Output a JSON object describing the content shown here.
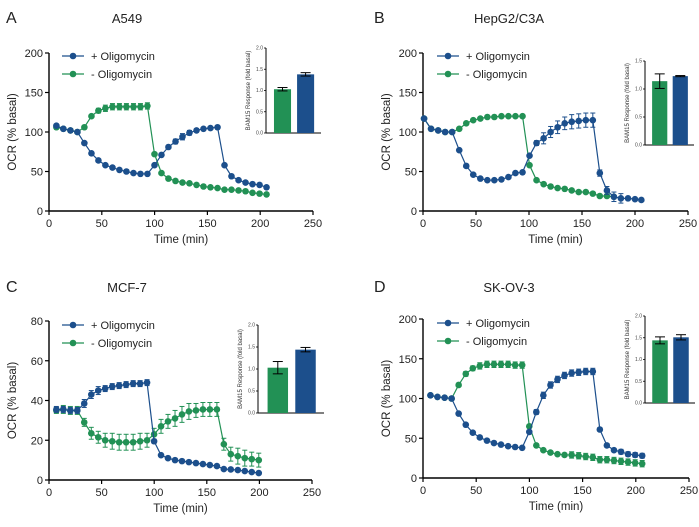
{
  "colors": {
    "plus": "#1c4f8c",
    "minus": "#229155",
    "axis": "#000000"
  },
  "chart_data": [
    {
      "type": "line",
      "panel": "A",
      "title": "A549",
      "xlabel": "Time (min)",
      "ylabel": "OCR (% basal)",
      "xlim": [
        0,
        250
      ],
      "ylim": [
        0,
        200
      ],
      "xticks": [
        "0",
        "50",
        "100",
        "150",
        "200",
        "250"
      ],
      "yticks": [
        "0",
        "50",
        "100",
        "150",
        "200"
      ],
      "legend": "top-left",
      "series": [
        {
          "name": "+ Oligomycin",
          "color": "#1c4f8c",
          "x": [
            7,
            13.6,
            20.3,
            26.9,
            33.5,
            40.2,
            46.8,
            53.4,
            60.1,
            66.7,
            73.3,
            80,
            86.6,
            93.2,
            99.9,
            106.5,
            113.1,
            119.8,
            126.4,
            133,
            139.7,
            146.3,
            152.9,
            159.6,
            166.2,
            172.8,
            179.5,
            186.1,
            192.7,
            199.4,
            206
          ],
          "y": [
            108,
            104,
            102,
            100,
            86,
            73,
            64,
            58,
            55,
            52,
            50,
            48,
            47,
            47,
            58,
            71,
            81,
            88,
            94,
            99,
            102,
            104,
            105,
            106,
            58,
            44,
            39,
            36,
            34,
            33,
            30
          ],
          "err": [
            2,
            2,
            1,
            1,
            1,
            1,
            1,
            1,
            1,
            1,
            1,
            1,
            1,
            1,
            1,
            1,
            2,
            3,
            4,
            3,
            2,
            1,
            1,
            1,
            1,
            1,
            1,
            1,
            1,
            1,
            1
          ]
        },
        {
          "name": "- Oligomycin",
          "color": "#229155",
          "x": [
            7,
            13.6,
            20.3,
            26.9,
            33.5,
            40.2,
            46.8,
            53.4,
            60.1,
            66.7,
            73.3,
            80,
            86.6,
            93.2,
            99.9,
            106.5,
            113.1,
            119.8,
            126.4,
            133,
            139.7,
            146.3,
            152.9,
            159.6,
            166.2,
            172.8,
            179.5,
            186.1,
            192.7,
            199.4,
            206
          ],
          "y": [
            106,
            104,
            102,
            100,
            106,
            120,
            127,
            130,
            132,
            132,
            132,
            132,
            132,
            133,
            72,
            48,
            41,
            38,
            36,
            35,
            33,
            31,
            30,
            29,
            27,
            27,
            26,
            25,
            23,
            22,
            21
          ],
          "err": [
            1,
            1,
            1,
            1,
            1,
            2,
            3,
            4,
            4,
            4,
            4,
            4,
            4,
            4,
            1,
            1,
            1,
            1,
            1,
            1,
            1,
            1,
            1,
            1,
            1,
            1,
            1,
            1,
            1,
            1,
            1
          ]
        }
      ],
      "inset": {
        "type": "bar",
        "ylabel": "BAM15 Response (fold basal)",
        "ylim": [
          0,
          2.0
        ],
        "yticks": [
          "0.0",
          "0.5",
          "1.0",
          "1.5",
          "2.0"
        ],
        "bars": [
          {
            "name": "- Oligomycin",
            "value": 1.03,
            "err": 0.04,
            "color": "#229155"
          },
          {
            "name": "+ Oligomycin",
            "value": 1.38,
            "err": 0.04,
            "color": "#1c4f8c"
          }
        ]
      }
    },
    {
      "type": "line",
      "panel": "B",
      "title": "HepG2/C3A",
      "xlabel": "Time (min)",
      "ylabel": "OCR (% basal)",
      "xlim": [
        0,
        250
      ],
      "ylim": [
        0,
        200
      ],
      "xticks": [
        "0",
        "50",
        "100",
        "150",
        "200",
        "250"
      ],
      "yticks": [
        "0",
        "50",
        "100",
        "150",
        "200"
      ],
      "legend": "top-left",
      "series": [
        {
          "name": "+ Oligomycin",
          "color": "#1c4f8c",
          "x": [
            1,
            7.6,
            14.3,
            20.9,
            27.5,
            34.2,
            40.8,
            47.4,
            54.1,
            60.7,
            67.3,
            74,
            80.6,
            87.2,
            93.9,
            100.5,
            107.1,
            113.8,
            120.4,
            127,
            133.7,
            140.3,
            146.9,
            153.6,
            160.2,
            166.8,
            173.5,
            180.1,
            186.7,
            193.4,
            200,
            206
          ],
          "y": [
            117,
            104,
            102,
            100,
            100,
            77,
            57,
            46,
            41,
            39,
            39,
            40,
            43,
            48,
            49,
            70,
            86,
            92,
            100,
            106,
            111,
            113,
            114,
            115,
            115,
            48,
            26,
            18,
            16,
            16,
            15,
            14
          ],
          "err": [
            1,
            1,
            1,
            1,
            1,
            1,
            1,
            1,
            1,
            1,
            1,
            1,
            1,
            1,
            1,
            1,
            3,
            7,
            7,
            8,
            8,
            9,
            9,
            9,
            9,
            4,
            5,
            6,
            6,
            1,
            1,
            1
          ]
        },
        {
          "name": "- Oligomycin",
          "color": "#229155",
          "x": [
            1,
            7.6,
            14.3,
            20.9,
            27.5,
            34.2,
            40.8,
            47.4,
            54.1,
            60.7,
            67.3,
            74,
            80.6,
            87.2,
            93.9,
            100.5,
            107.1,
            113.8,
            120.4,
            127,
            133.7,
            140.3,
            146.9,
            153.6,
            160.2,
            166.8,
            173.5,
            180.1
          ],
          "y": [
            117,
            104,
            102,
            100,
            100,
            104,
            111,
            115,
            117,
            119,
            119,
            120,
            120,
            120,
            120,
            58,
            39,
            34,
            31,
            29,
            28,
            26,
            24,
            24,
            22,
            19,
            19,
            18
          ],
          "err": [
            1,
            1,
            1,
            1,
            1,
            1,
            1,
            1,
            1,
            1,
            1,
            1,
            1,
            1,
            1,
            1,
            1,
            1,
            1,
            1,
            1,
            1,
            1,
            1,
            1,
            1,
            1,
            1
          ]
        }
      ],
      "inset": {
        "type": "bar",
        "ylabel": "BAM15 Response (fold basal)",
        "ylim": [
          0,
          1.5
        ],
        "yticks": [
          "0.0",
          "0.5",
          "1.0",
          "1.5"
        ],
        "bars": [
          {
            "name": "- Oligomycin",
            "value": 1.14,
            "err": 0.13,
            "color": "#229155"
          },
          {
            "name": "+ Oligomycin",
            "value": 1.23,
            "err": 0.01,
            "color": "#1c4f8c"
          }
        ]
      }
    },
    {
      "type": "line",
      "panel": "C",
      "title": "MCF-7",
      "xlabel": "Time (min)",
      "ylabel": "OCR (% basal)",
      "xlim": [
        0,
        250
      ],
      "ylim": [
        0,
        80
      ],
      "xticks": [
        "0",
        "50",
        "100",
        "150",
        "200",
        "250"
      ],
      "yticks": [
        "0",
        "20",
        "40",
        "60",
        "80"
      ],
      "legend": "top-left",
      "series": [
        {
          "name": "+ Oligomycin",
          "color": "#1c4f8c",
          "x": [
            7,
            13.6,
            20.3,
            26.9,
            33.5,
            40.2,
            46.8,
            53.4,
            60.1,
            66.7,
            73.3,
            80,
            86.6,
            93.2,
            99.9,
            106.5,
            113.1,
            119.8,
            126.4,
            133,
            139.7,
            146.3,
            152.9,
            159.6,
            166.2,
            172.8,
            179.5,
            186.1,
            192.7,
            199.4
          ],
          "y": [
            35.5,
            35.5,
            35,
            35,
            38.5,
            43,
            45,
            46,
            47,
            47.5,
            48,
            48.5,
            48.5,
            49,
            19.5,
            12.5,
            11,
            10,
            9.5,
            9,
            8.5,
            8,
            7.5,
            7,
            5.5,
            5.3,
            5,
            4.5,
            4,
            3.5
          ],
          "err": [
            1.5,
            1.5,
            1.5,
            1.5,
            2,
            2,
            2,
            1.5,
            1.5,
            1.5,
            1.5,
            1.5,
            1.5,
            1.5,
            1,
            0.8,
            0.8,
            0.8,
            0.6,
            0.6,
            0.6,
            0.6,
            0.6,
            0.6,
            0.6,
            0.6,
            0.6,
            0.6,
            0.6,
            0.6
          ]
        },
        {
          "name": "- Oligomycin",
          "color": "#229155",
          "x": [
            7,
            13.6,
            20.3,
            26.9,
            33.5,
            40.2,
            46.8,
            53.4,
            60.1,
            66.7,
            73.3,
            80,
            86.6,
            93.2,
            99.9,
            106.5,
            113.1,
            119.8,
            126.4,
            133,
            139.7,
            146.3,
            152.9,
            159.6,
            166.2,
            172.8,
            179.5,
            186.1,
            192.7,
            199.4
          ],
          "y": [
            35,
            35.5,
            35,
            35,
            29,
            23.5,
            21.5,
            20,
            19.5,
            19,
            19,
            19,
            19.5,
            20,
            23,
            27,
            29.5,
            31,
            33,
            34.5,
            35,
            35.5,
            35.5,
            35.5,
            18,
            13,
            12,
            11,
            10.5,
            10
          ],
          "err": [
            1.5,
            2,
            2,
            2,
            2,
            3,
            3,
            3.5,
            4,
            4,
            4,
            4,
            4,
            3.5,
            3,
            3.5,
            3.5,
            4,
            4,
            4,
            3.5,
            3.5,
            3.5,
            3.5,
            3,
            3.5,
            4,
            4,
            3.5,
            3.5
          ]
        }
      ],
      "inset": {
        "type": "bar",
        "ylabel": "BAM15 Response (fold basal)",
        "ylim": [
          0,
          2.0
        ],
        "yticks": [
          "0.0",
          "0.5",
          "1.0",
          "1.5",
          "2.0"
        ],
        "bars": [
          {
            "name": "- Oligomycin",
            "value": 1.03,
            "err": 0.14,
            "color": "#229155"
          },
          {
            "name": "+ Oligomycin",
            "value": 1.44,
            "err": 0.05,
            "color": "#1c4f8c"
          }
        ]
      }
    },
    {
      "type": "line",
      "panel": "D",
      "title": "SK-OV-3",
      "xlabel": "Time (min)",
      "ylabel": "OCR (% basal)",
      "xlim": [
        0,
        250
      ],
      "ylim": [
        0,
        200
      ],
      "xticks": [
        "0",
        "50",
        "100",
        "150",
        "200",
        "250"
      ],
      "yticks": [
        "0",
        "50",
        "100",
        "150",
        "200"
      ],
      "legend": "top-left",
      "series": [
        {
          "name": "+ Oligomycin",
          "color": "#1c4f8c",
          "x": [
            7,
            13.6,
            20.3,
            26.9,
            33.5,
            40.2,
            46.8,
            53.4,
            60.1,
            66.7,
            73.3,
            80,
            86.6,
            93.2,
            99.9,
            106.5,
            113.1,
            119.8,
            126.4,
            133,
            139.7,
            146.3,
            152.9,
            159.6,
            166.2,
            172.8,
            179.5,
            186.1,
            192.7,
            199.4,
            206
          ],
          "y": [
            104,
            102,
            101,
            100,
            81,
            67,
            57,
            51,
            47,
            44,
            42,
            40,
            39,
            38,
            58,
            83,
            104,
            117,
            124,
            129,
            132,
            133,
            134,
            134,
            61,
            41,
            35,
            33,
            30,
            29,
            28
          ],
          "err": [
            1,
            1,
            1,
            1,
            1,
            1,
            1,
            1,
            1,
            1,
            1,
            1,
            1,
            1,
            2,
            3,
            4,
            4,
            4,
            4,
            4,
            4,
            4,
            4,
            2,
            2,
            2,
            3,
            3,
            3,
            3
          ]
        },
        {
          "name": "- Oligomycin",
          "color": "#229155",
          "x": [
            7,
            13.6,
            20.3,
            26.9,
            33.5,
            40.2,
            46.8,
            53.4,
            60.1,
            66.7,
            73.3,
            80,
            86.6,
            93.2,
            99.9,
            106.5,
            113.1,
            119.8,
            126.4,
            133,
            139.7,
            146.3,
            152.9,
            159.6,
            166.2,
            172.8,
            179.5,
            186.1,
            192.7,
            199.4,
            206
          ],
          "y": [
            104,
            102,
            101,
            100,
            117,
            131,
            138,
            141,
            143,
            143,
            143,
            143,
            142,
            142,
            65,
            41,
            35,
            32,
            30,
            29,
            29,
            28,
            27,
            26,
            23,
            23,
            22,
            21,
            20,
            19,
            18
          ],
          "err": [
            1,
            1,
            1,
            1,
            2,
            3,
            3,
            4,
            4,
            4,
            4,
            4,
            4,
            4,
            2,
            1,
            1,
            1,
            2,
            2,
            4,
            4,
            4,
            4,
            4,
            4,
            4,
            4,
            4,
            4,
            4
          ]
        }
      ],
      "inset": {
        "type": "bar",
        "ylabel": "BAM15 Response (fold basal)",
        "ylim": [
          0,
          2.0
        ],
        "yticks": [
          "0.0",
          "0.5",
          "1.0",
          "1.5",
          "2.0"
        ],
        "bars": [
          {
            "name": "- Oligomycin",
            "value": 1.44,
            "err": 0.08,
            "color": "#229155"
          },
          {
            "name": "+ Oligomycin",
            "value": 1.51,
            "err": 0.06,
            "color": "#1c4f8c"
          }
        ]
      }
    }
  ]
}
